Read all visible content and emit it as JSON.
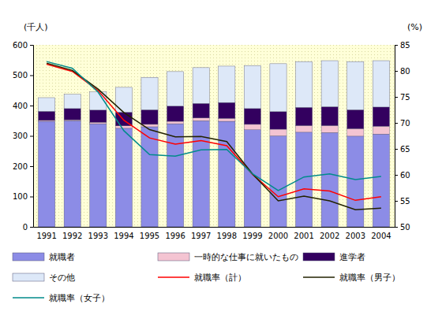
{
  "chart_data": {
    "type": "bar",
    "stacked": true,
    "y_label": "(千人)",
    "y2_label": "(%)",
    "categories": [
      "1991",
      "1992",
      "1993",
      "1994",
      "1995",
      "1996",
      "1997",
      "1998",
      "1999",
      "2000",
      "2001",
      "2002",
      "2003",
      "2004"
    ],
    "ylim": [
      0,
      600
    ],
    "yticks": [
      0,
      100,
      200,
      300,
      400,
      500,
      600
    ],
    "y2lim": [
      50,
      85
    ],
    "y2ticks": [
      50,
      55,
      60,
      65,
      70,
      75,
      80,
      85
    ],
    "series": [
      {
        "name": "就職者",
        "type": "bar",
        "color": "#8c8ce6",
        "values": [
          348,
          350,
          340,
          325,
          330,
          340,
          350,
          348,
          320,
          300,
          312,
          311,
          299,
          306
        ]
      },
      {
        "name": "一時的な仕事に就いたもの",
        "type": "bar",
        "color": "#f4c4d2",
        "values": [
          3,
          3,
          5,
          8,
          8,
          8,
          9,
          10,
          18,
          22,
          22,
          23,
          25,
          26
        ]
      },
      {
        "name": "進学者",
        "type": "bar",
        "color": "#33005f",
        "values": [
          30,
          37,
          40,
          45,
          48,
          50,
          48,
          52,
          52,
          58,
          60,
          62,
          62,
          63
        ]
      },
      {
        "name": "その他",
        "type": "bar",
        "color": "#dde8f8",
        "values": [
          45,
          47,
          60,
          82,
          107,
          114,
          118,
          120,
          142,
          158,
          151,
          152,
          159,
          153
        ]
      },
      {
        "name": "就職率（計）",
        "type": "line",
        "axis": "y2",
        "color": "#ff0000",
        "values": [
          81.3,
          79.9,
          76.2,
          70.5,
          67.1,
          65.9,
          66.6,
          65.6,
          60.1,
          55.8,
          57.3,
          56.9,
          55.1,
          55.8
        ]
      },
      {
        "name": "就職率（男子）",
        "type": "line",
        "axis": "y2",
        "color": "#222200",
        "values": [
          81.5,
          80.1,
          76.5,
          72.0,
          68.7,
          67.3,
          67.4,
          66.4,
          60.2,
          55.0,
          55.9,
          55.0,
          53.3,
          53.6
        ]
      },
      {
        "name": "就職率（女子）",
        "type": "line",
        "axis": "y2",
        "color": "#008b8b",
        "values": [
          81.8,
          80.5,
          75.9,
          68.5,
          63.9,
          63.6,
          64.8,
          64.9,
          60.2,
          57.0,
          59.6,
          60.2,
          59.1,
          59.7
        ]
      }
    ]
  }
}
